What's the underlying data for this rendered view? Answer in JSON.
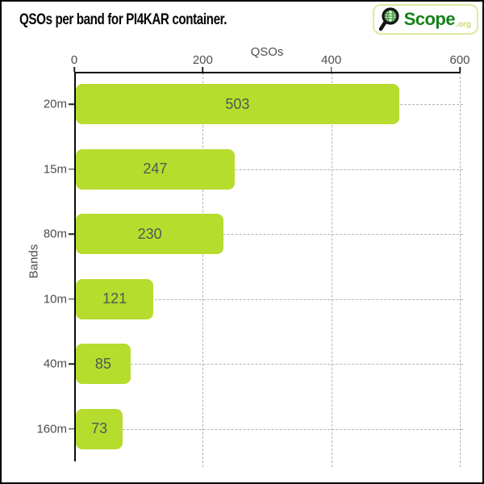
{
  "title": "QSOs per band for PI4KAR container.",
  "logo": {
    "brand": "Scope",
    "tld": ".org",
    "icon": "magnifier-globe-icon",
    "border_color": "#dde9a0",
    "brand_color": "#17801c",
    "tld_color": "#c8db63"
  },
  "chart_data": {
    "type": "bar",
    "orientation": "horizontal",
    "title": "QSOs per band for PI4KAR container.",
    "xlabel": "QSOs",
    "ylabel": "Bands",
    "categories": [
      "20m",
      "15m",
      "80m",
      "10m",
      "40m",
      "160m"
    ],
    "values": [
      503,
      247,
      230,
      121,
      85,
      73
    ],
    "xlim": [
      0,
      600
    ],
    "xticks": [
      0,
      200,
      400,
      600
    ],
    "grid": true,
    "legend": false,
    "x_axis_position": "top",
    "bar_color": "#b6dc2e",
    "bar_label_color": "#4b5c53",
    "axis_label_color": "#4d4d4d",
    "grid_color": "#b3b3b3"
  }
}
